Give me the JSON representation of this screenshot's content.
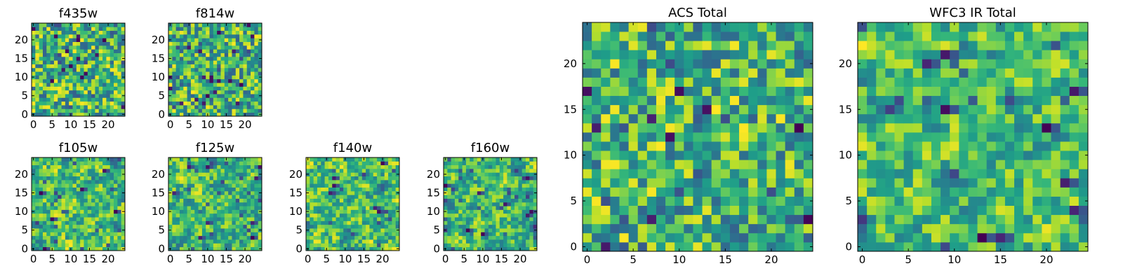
{
  "figure": {
    "colormap": "viridis",
    "grid": false,
    "legend": "none"
  },
  "chart_data": [
    {
      "type": "heatmap",
      "title": "f435w",
      "size": [
        25,
        25
      ],
      "xticks": [
        0,
        5,
        10,
        15,
        20
      ],
      "yticks": [
        0,
        5,
        10,
        15,
        20
      ],
      "xlim": [
        -0.5,
        24.5
      ],
      "ylim": [
        -0.5,
        24.5
      ],
      "seed": 11,
      "smooth": 0
    },
    {
      "type": "heatmap",
      "title": "f814w",
      "size": [
        25,
        25
      ],
      "xticks": [
        0,
        5,
        10,
        15,
        20
      ],
      "yticks": [
        0,
        5,
        10,
        15,
        20
      ],
      "xlim": [
        -0.5,
        24.5
      ],
      "ylim": [
        -0.5,
        24.5
      ],
      "seed": 23,
      "smooth": 0
    },
    {
      "type": "heatmap",
      "title": "f105w",
      "size": [
        25,
        25
      ],
      "xticks": [
        0,
        5,
        10,
        15,
        20
      ],
      "yticks": [
        0,
        5,
        10,
        15,
        20
      ],
      "xlim": [
        -0.5,
        24.5
      ],
      "ylim": [
        -0.5,
        24.5
      ],
      "seed": 37,
      "smooth": 1
    },
    {
      "type": "heatmap",
      "title": "f125w",
      "size": [
        25,
        25
      ],
      "xticks": [
        0,
        5,
        10,
        15,
        20
      ],
      "yticks": [
        0,
        5,
        10,
        15,
        20
      ],
      "xlim": [
        -0.5,
        24.5
      ],
      "ylim": [
        -0.5,
        24.5
      ],
      "seed": 41,
      "smooth": 1
    },
    {
      "type": "heatmap",
      "title": "f140w",
      "size": [
        25,
        25
      ],
      "xticks": [
        0,
        5,
        10,
        15,
        20
      ],
      "yticks": [
        0,
        5,
        10,
        15,
        20
      ],
      "xlim": [
        -0.5,
        24.5
      ],
      "ylim": [
        -0.5,
        24.5
      ],
      "seed": 53,
      "smooth": 1
    },
    {
      "type": "heatmap",
      "title": "f160w",
      "size": [
        25,
        25
      ],
      "xticks": [
        0,
        5,
        10,
        15,
        20
      ],
      "yticks": [
        0,
        5,
        10,
        15,
        20
      ],
      "xlim": [
        -0.5,
        24.5
      ],
      "ylim": [
        -0.5,
        24.5
      ],
      "seed": 67,
      "smooth": 1
    },
    {
      "type": "heatmap",
      "title": "ACS Total",
      "size": [
        25,
        25
      ],
      "xticks": [
        0,
        5,
        10,
        15,
        20
      ],
      "yticks": [
        0,
        5,
        10,
        15,
        20
      ],
      "xlim": [
        -0.5,
        24.5
      ],
      "ylim": [
        -0.5,
        24.5
      ],
      "seed": 79,
      "smooth": 0
    },
    {
      "type": "heatmap",
      "title": "WFC3 IR Total",
      "size": [
        25,
        25
      ],
      "xticks": [
        0,
        5,
        10,
        15,
        20
      ],
      "yticks": [
        0,
        5,
        10,
        15,
        20
      ],
      "xlim": [
        -0.5,
        24.5
      ],
      "ylim": [
        -0.5,
        24.5
      ],
      "seed": 97,
      "smooth": 1
    }
  ]
}
